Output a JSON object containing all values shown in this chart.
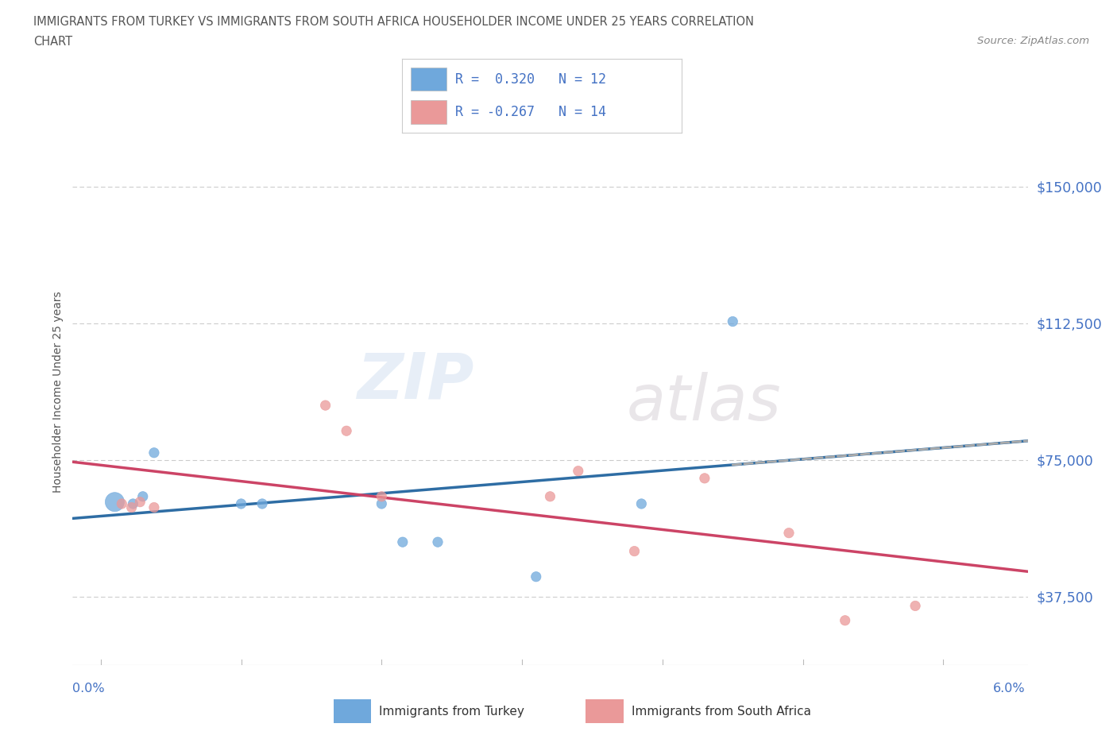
{
  "title_line1": "IMMIGRANTS FROM TURKEY VS IMMIGRANTS FROM SOUTH AFRICA HOUSEHOLDER INCOME UNDER 25 YEARS CORRELATION",
  "title_line2": "CHART",
  "source": "Source: ZipAtlas.com",
  "ylabel": "Householder Income Under 25 years",
  "ytick_labels": [
    "$37,500",
    "$75,000",
    "$112,500",
    "$150,000"
  ],
  "ytick_values": [
    37500,
    75000,
    112500,
    150000
  ],
  "ymin": 18750,
  "ymax": 168750,
  "xmin": -0.002,
  "xmax": 0.066,
  "legend_turkey_R": "R =  0.320",
  "legend_turkey_N": "N = 12",
  "legend_sa_R": "R = -0.267",
  "legend_sa_N": "N = 14",
  "color_turkey": "#6fa8dc",
  "color_sa": "#ea9999",
  "color_label": "#4472c4",
  "watermark_zip": "ZIP",
  "watermark_atlas": "atlas",
  "turkey_points_x": [
    0.001,
    0.0023,
    0.003,
    0.0038,
    0.01,
    0.0115,
    0.02,
    0.0215,
    0.024,
    0.031,
    0.0385,
    0.045
  ],
  "turkey_points_y": [
    63500,
    63000,
    65000,
    77000,
    63000,
    63000,
    63000,
    52500,
    52500,
    43000,
    63000,
    113000
  ],
  "turkey_sizes": [
    300,
    80,
    80,
    80,
    80,
    80,
    80,
    80,
    80,
    80,
    80,
    80
  ],
  "sa_points_x": [
    0.0015,
    0.0022,
    0.0028,
    0.0038,
    0.016,
    0.0175,
    0.02,
    0.032,
    0.034,
    0.038,
    0.053,
    0.058,
    0.043,
    0.049
  ],
  "sa_points_y": [
    63000,
    62000,
    63500,
    62000,
    90000,
    83000,
    65000,
    65000,
    72000,
    50000,
    31000,
    35000,
    70000,
    55000
  ],
  "sa_sizes": [
    80,
    80,
    80,
    80,
    80,
    80,
    80,
    80,
    80,
    80,
    80,
    80,
    80,
    80
  ],
  "x_tick_positions": [
    0.0,
    0.01,
    0.02,
    0.03,
    0.04,
    0.05,
    0.06
  ]
}
